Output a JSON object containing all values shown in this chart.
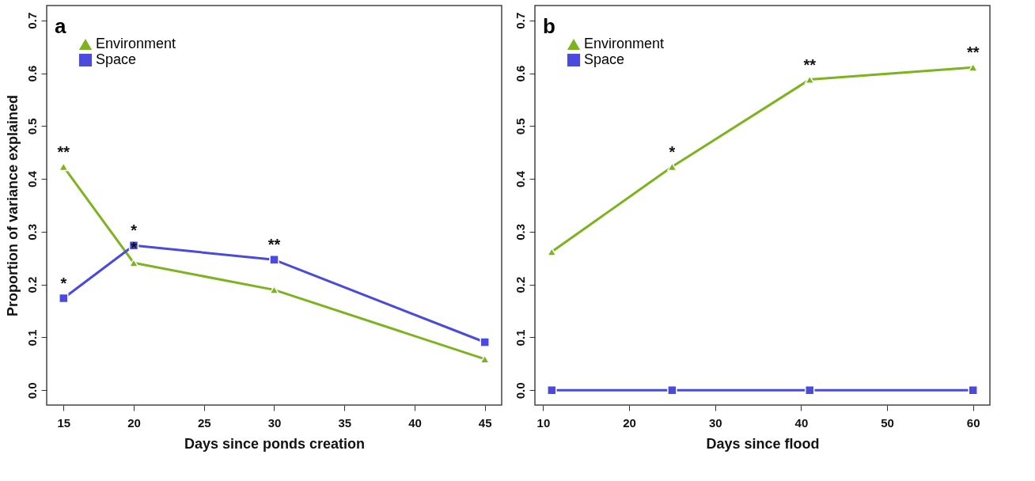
{
  "chart_data": [
    {
      "type": "line",
      "title": "a",
      "xlabel": "Days since ponds creation",
      "ylabel": "Proportion of variance explained",
      "x": [
        15,
        20,
        30,
        45
      ],
      "series": [
        {
          "name": "Environment",
          "color": "#7cb31f",
          "marker": "triangle",
          "values": [
            0.423,
            0.241,
            0.19,
            0.059
          ]
        },
        {
          "name": "Space",
          "color": "#4a4adc",
          "marker": "square",
          "values": [
            0.174,
            0.274,
            0.247,
            0.091
          ]
        }
      ],
      "xlim": [
        13.8,
        46.2
      ],
      "xticks": [
        15,
        20,
        25,
        30,
        35,
        40,
        45
      ],
      "ylim": [
        -0.028,
        0.728
      ],
      "yticks": [
        {
          "value": 0,
          "label": "0.0"
        },
        0.1,
        0.2,
        0.3,
        0.4,
        0.5,
        0.6,
        0.7
      ],
      "legend": "top left",
      "grid": false,
      "annotations": [
        {
          "text": "**",
          "x": 15,
          "y": 0.423
        },
        {
          "text": "*",
          "x": 15,
          "y": 0.174
        },
        {
          "text": "*",
          "x": 20,
          "y": 0.274
        },
        {
          "text": "*",
          "x": 20,
          "y": 0.241
        },
        {
          "text": "**",
          "x": 30,
          "y": 0.247
        }
      ]
    },
    {
      "type": "line",
      "title": "b",
      "xlabel": "Days since flood",
      "x": [
        11,
        25,
        41,
        60
      ],
      "series": [
        {
          "name": "Environment",
          "color": "#7cb31f",
          "marker": "triangle",
          "values": [
            0.262,
            0.423,
            0.588,
            0.611
          ]
        },
        {
          "name": "Space",
          "color": "#4a4adc",
          "marker": "square",
          "values": [
            0,
            0,
            0,
            0
          ]
        }
      ],
      "xlim": [
        9.04,
        61.96
      ],
      "xticks": [
        10,
        20,
        30,
        40,
        50,
        60
      ],
      "ylim": [
        -0.028,
        0.728
      ],
      "yticks": [
        {
          "value": 0,
          "label": "0.0"
        },
        0.1,
        0.2,
        0.3,
        0.4,
        0.5,
        0.6,
        0.7
      ],
      "legend": "top left",
      "grid": false,
      "annotations": [
        {
          "text": "*",
          "x": 25,
          "y": 0.423
        },
        {
          "text": "**",
          "x": 41,
          "y": 0.588
        },
        {
          "text": "**",
          "x": 60,
          "y": 0.611
        }
      ]
    }
  ]
}
